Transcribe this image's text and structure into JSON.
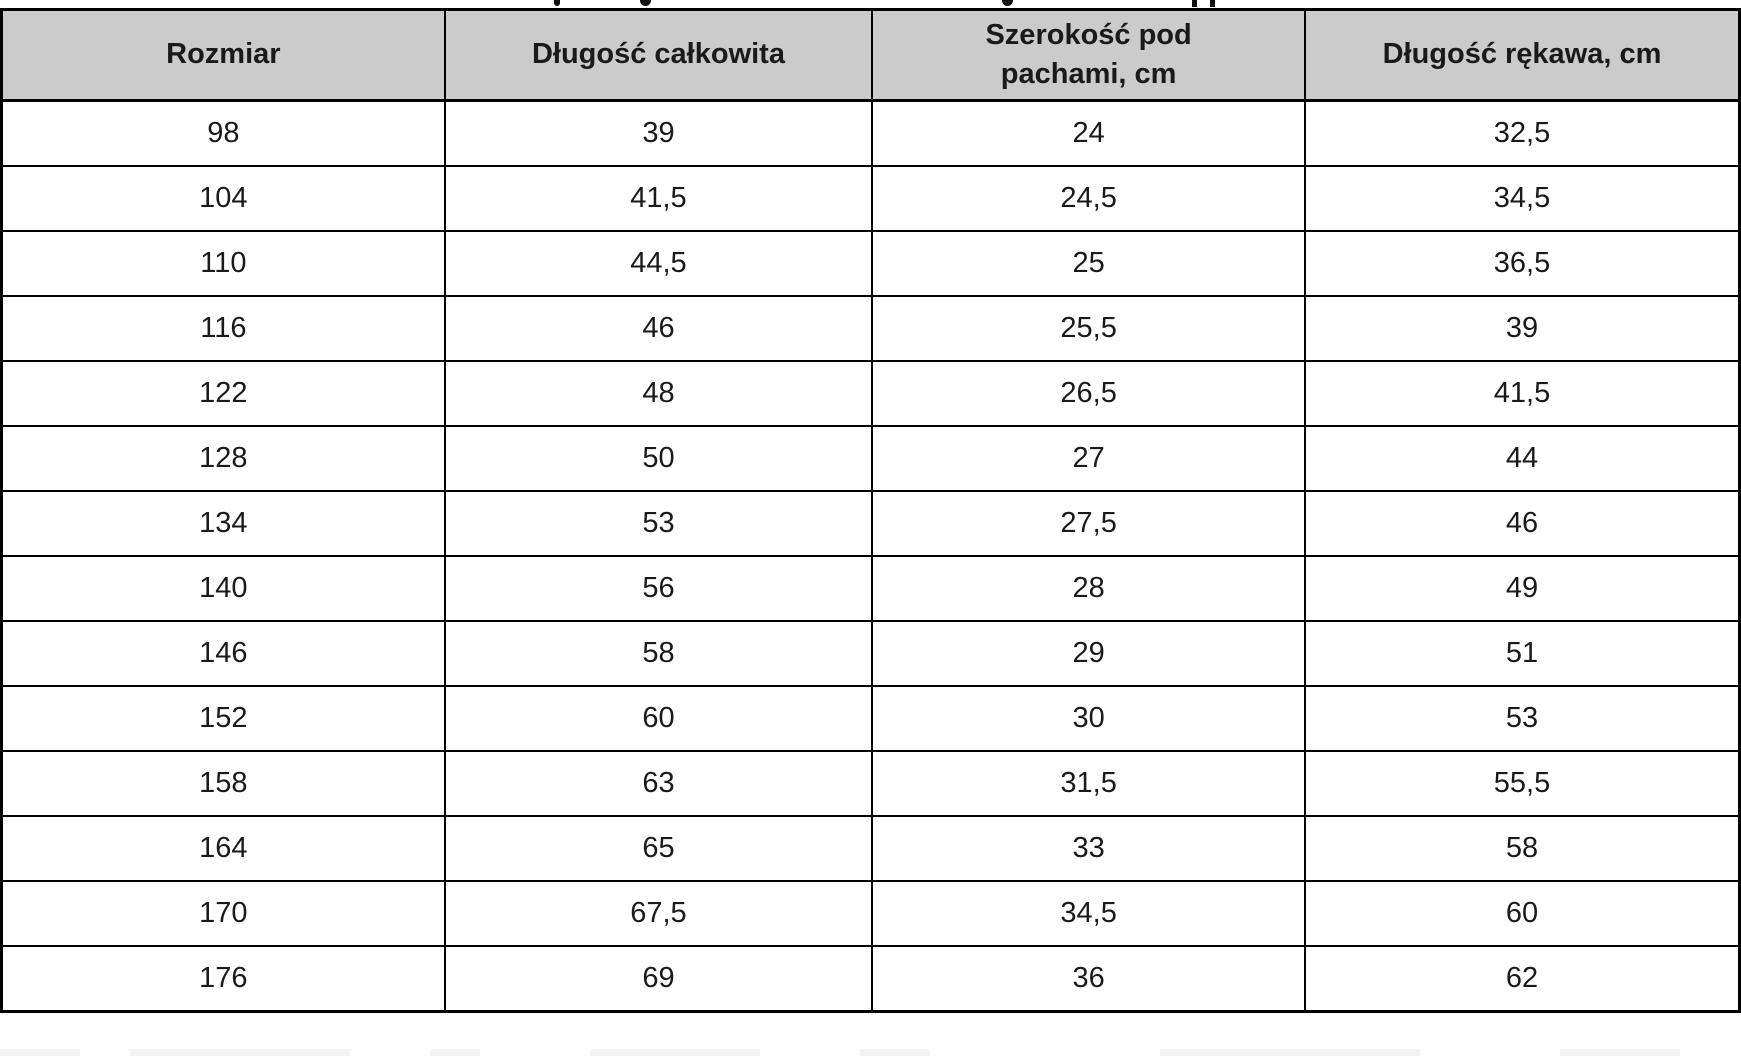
{
  "table": {
    "columns": [
      "Rozmiar",
      "Długość całkowita",
      "Szerokość pod pachami, cm",
      "Długość rękawa, cm"
    ],
    "rows": [
      [
        "98",
        "39",
        "24",
        "32,5"
      ],
      [
        "104",
        "41,5",
        "24,5",
        "34,5"
      ],
      [
        "110",
        "44,5",
        "25",
        "36,5"
      ],
      [
        "116",
        "46",
        "25,5",
        "39"
      ],
      [
        "122",
        "48",
        "26,5",
        "41,5"
      ],
      [
        "128",
        "50",
        "27",
        "44"
      ],
      [
        "134",
        "53",
        "27,5",
        "46"
      ],
      [
        "140",
        "56",
        "28",
        "49"
      ],
      [
        "146",
        "58",
        "29",
        "51"
      ],
      [
        "152",
        "60",
        "30",
        "53"
      ],
      [
        "158",
        "63",
        "31,5",
        "55,5"
      ],
      [
        "164",
        "65",
        "33",
        "58"
      ],
      [
        "170",
        "67,5",
        "34,5",
        "60"
      ],
      [
        "176",
        "69",
        "36",
        "62"
      ]
    ]
  },
  "colors": {
    "header_bg": "#cbcbcb",
    "border": "#000000",
    "text": "#1a1a1a",
    "page_bg": "#ffffff"
  },
  "chart_data": {
    "type": "table",
    "title": "",
    "categories": [
      "Rozmiar",
      "Długość całkowita",
      "Szerokość pod pachami, cm",
      "Długość rękawa, cm"
    ],
    "series": [
      {
        "name": "Rozmiar",
        "values": [
          98,
          104,
          110,
          116,
          122,
          128,
          134,
          140,
          146,
          152,
          158,
          164,
          170,
          176
        ]
      },
      {
        "name": "Długość całkowita",
        "values": [
          39,
          41.5,
          44.5,
          46,
          48,
          50,
          53,
          56,
          58,
          60,
          63,
          65,
          67.5,
          69
        ]
      },
      {
        "name": "Szerokość pod pachami, cm",
        "values": [
          24,
          24.5,
          25,
          25.5,
          26.5,
          27,
          27.5,
          28,
          29,
          30,
          31.5,
          33,
          34.5,
          36
        ]
      },
      {
        "name": "Długość rękawa, cm",
        "values": [
          32.5,
          34.5,
          36.5,
          39,
          41.5,
          44,
          46,
          49,
          51,
          53,
          55.5,
          58,
          60,
          62
        ]
      }
    ]
  }
}
